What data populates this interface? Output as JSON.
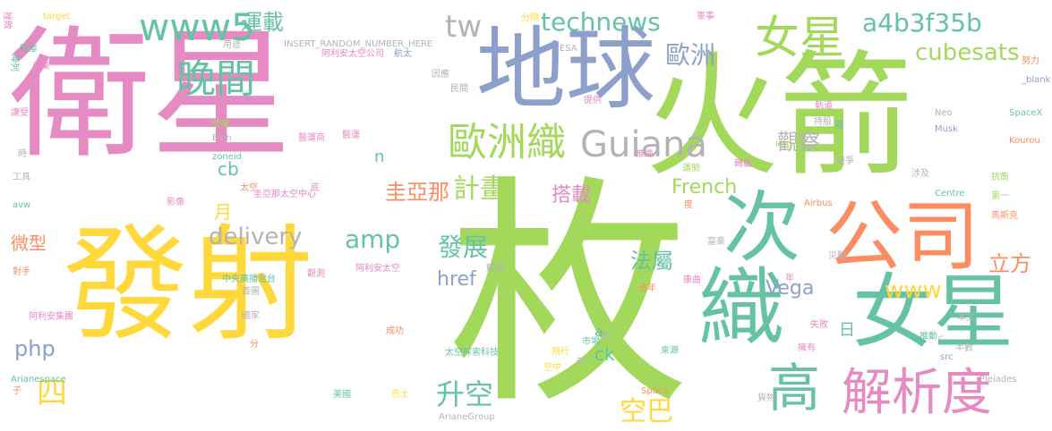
{
  "words": [
    {
      "text": "枚",
      "color": "#a3d95b"
    },
    {
      "text": "衛星",
      "color": "#e68ac3"
    },
    {
      "text": "發射",
      "color": "#ffd93b"
    },
    {
      "text": "火箭",
      "color": "#a3d95b"
    },
    {
      "text": "地球",
      "color": "#8da0cb"
    },
    {
      "text": "公司",
      "color": "#fc8d62"
    },
    {
      "text": "次",
      "color": "#66c2a5"
    },
    {
      "text": "織",
      "color": "#66c2a5"
    },
    {
      "text": "女星",
      "color": "#66c2a5"
    },
    {
      "text": "女星",
      "color": "#a3d95b"
    },
    {
      "text": "高",
      "color": "#66c2a5"
    },
    {
      "text": "解析度",
      "color": "#e68ac3"
    },
    {
      "text": "Guiana",
      "color": "#b3b3b3"
    },
    {
      "text": "歐洲織",
      "color": "#a3d95b"
    },
    {
      "text": "www5",
      "color": "#66c2a5"
    },
    {
      "text": "晚間",
      "color": "#66c2a5"
    },
    {
      "text": "technews",
      "color": "#66c2a5"
    },
    {
      "text": "tw",
      "color": "#b3b3b3"
    },
    {
      "text": "運載",
      "color": "#66c2a5"
    },
    {
      "text": "歐洲",
      "color": "#8da0cb"
    },
    {
      "text": "a4b3f35b",
      "color": "#66c2a5"
    },
    {
      "text": "cubesats",
      "color": "#a3d95b"
    },
    {
      "text": "delivery",
      "color": "#b3b3b3"
    },
    {
      "text": "amp",
      "color": "#66c2a5"
    },
    {
      "text": "計畫",
      "color": "#a3d95b"
    },
    {
      "text": "圭亞那",
      "color": "#fc8d62"
    },
    {
      "text": "觀察",
      "color": "#b3b3b3"
    },
    {
      "text": "發展",
      "color": "#66c2a5"
    },
    {
      "text": "href",
      "color": "#8da0cb"
    },
    {
      "text": "升空",
      "color": "#66c2a5"
    },
    {
      "text": "空巴",
      "color": "#ffd93b"
    },
    {
      "text": "搭載",
      "color": "#e68ac3"
    },
    {
      "text": "French",
      "color": "#a3d95b"
    },
    {
      "text": "法屬",
      "color": "#66c2a5"
    },
    {
      "text": "Vega",
      "color": "#8da0cb"
    },
    {
      "text": "www",
      "color": "#ffd93b"
    },
    {
      "text": "立方",
      "color": "#fc8d62"
    },
    {
      "text": "php",
      "color": "#8da0cb"
    },
    {
      "text": "四",
      "color": "#ffd93b"
    },
    {
      "text": "cb",
      "color": "#66c2a5"
    },
    {
      "text": "月",
      "color": "#ffd93b"
    },
    {
      "text": "微型",
      "color": "#fc8d62"
    },
    {
      "text": "n",
      "color": "#66c2a5"
    },
    {
      "text": "a",
      "color": "#66c2a5"
    },
    {
      "text": "ck",
      "color": "#66c2a5"
    },
    {
      "text": "日",
      "color": "#66c2a5"
    },
    {
      "text": "INSERT_RANDOM_NUMBER_HERE",
      "color": "#b3b3b3"
    },
    {
      "text": "target",
      "color": "#ffd93b"
    },
    {
      "text": "陸軍",
      "color": "#66c2a5"
    },
    {
      "text": "陣列",
      "color": "#66c2a5"
    },
    {
      "text": "挫敗",
      "color": "#e68ac3"
    },
    {
      "text": "商業",
      "color": "#e68ac3"
    },
    {
      "text": "讓受",
      "color": "#e68ac3"
    },
    {
      "text": "時",
      "color": "#b3b3b3"
    },
    {
      "text": "工具",
      "color": "#b3b3b3"
    },
    {
      "text": "avw",
      "color": "#66c2a5"
    },
    {
      "text": "對手",
      "color": "#fc8d62"
    },
    {
      "text": "阿利安集團",
      "color": "#e68ac3"
    },
    {
      "text": "Arianespace",
      "color": "#66c2a5"
    },
    {
      "text": "子",
      "color": "#fc8d62"
    },
    {
      "text": "用途",
      "color": "#b3b3b3"
    },
    {
      "text": "阿利安太空公司",
      "color": "#e68ac3"
    },
    {
      "text": "授權",
      "color": "#a3d95b"
    },
    {
      "text": "Elon",
      "color": "#b3b3b3"
    },
    {
      "text": "zoneid",
      "color": "#66c2a5"
    },
    {
      "text": "醫運商",
      "color": "#e68ac3"
    },
    {
      "text": "醫運",
      "color": "#e68ac3"
    },
    {
      "text": "太空",
      "color": "#fc8d62"
    },
    {
      "text": "圭亞那太空中心",
      "color": "#e68ac3"
    },
    {
      "text": "底",
      "color": "#e68ac3"
    },
    {
      "text": "影像",
      "color": "#e68ac3"
    },
    {
      "text": "中央廣播電台",
      "color": "#66c2a5"
    },
    {
      "text": "首圖",
      "color": "#b3b3b3"
    },
    {
      "text": "觀測",
      "color": "#e68ac3"
    },
    {
      "text": "阿利安太空",
      "color": "#e68ac3"
    },
    {
      "text": "國家",
      "color": "#b3b3b3"
    },
    {
      "text": "分",
      "color": "#fc8d62"
    },
    {
      "text": "成功",
      "color": "#fc8d62"
    },
    {
      "text": "太空探索科技",
      "color": "#66c2a5"
    },
    {
      "text": "美國",
      "color": "#66c2a5"
    },
    {
      "text": "巴士",
      "color": "#ffd93b"
    },
    {
      "text": "ArianeGroup",
      "color": "#b3b3b3"
    },
    {
      "text": "航太",
      "color": "#8da0cb"
    },
    {
      "text": "因應",
      "color": "#b3b3b3"
    },
    {
      "text": "民間",
      "color": "#b3b3b3"
    },
    {
      "text": "ESA",
      "color": "#b3b3b3"
    },
    {
      "text": "提供",
      "color": "#e68ac3"
    },
    {
      "text": "分隔",
      "color": "#ffd93b"
    },
    {
      "text": "軍事",
      "color": "#e68ac3"
    },
    {
      "text": "努力",
      "color": "#fc8d62"
    },
    {
      "text": "_blank",
      "color": "#8da0cb"
    },
    {
      "text": "軌道",
      "color": "#e68ac3"
    },
    {
      "text": "兩",
      "color": "#66c2a5"
    },
    {
      "text": "持股",
      "color": "#b3b3b3"
    },
    {
      "text": "Neo",
      "color": "#b3b3b3"
    },
    {
      "text": "SpaceX",
      "color": "#66c2a5"
    },
    {
      "text": "Musk",
      "color": "#8da0cb"
    },
    {
      "text": "Kourou",
      "color": "#fc8d62"
    },
    {
      "text": "img",
      "color": "#a3d95b"
    },
    {
      "text": "推進",
      "color": "#e68ac3"
    },
    {
      "text": "運勢",
      "color": "#a3d95b"
    },
    {
      "text": "轉載",
      "color": "#e68ac3"
    },
    {
      "text": "競爭",
      "color": "#b3b3b3"
    },
    {
      "text": "涉及",
      "color": "#b3b3b3"
    },
    {
      "text": "抗衡",
      "color": "#a3d95b"
    },
    {
      "text": "第一",
      "color": "#a3d95b"
    },
    {
      "text": "Centre",
      "color": "#66c2a5"
    },
    {
      "text": "Airbus",
      "color": "#fc8d62"
    },
    {
      "text": "富豪",
      "color": "#b3b3b3"
    },
    {
      "text": "馬斯克",
      "color": "#fc8d62"
    },
    {
      "text": "災難",
      "color": "#b3b3b3"
    },
    {
      "text": "解體",
      "color": "#b3b3b3"
    },
    {
      "text": "康曲",
      "color": "#e68ac3"
    },
    {
      "text": "去年",
      "color": "#fc8d62"
    },
    {
      "text": "年",
      "color": "#e68ac3"
    },
    {
      "text": "失敗",
      "color": "#e68ac3"
    },
    {
      "text": "本文",
      "color": "#b3b3b3"
    },
    {
      "text": "擁有",
      "color": "#e68ac3"
    },
    {
      "text": "半數",
      "color": "#b3b3b3"
    },
    {
      "text": "推動",
      "color": "#66c2a5"
    },
    {
      "text": "src",
      "color": "#8da0cb"
    },
    {
      "text": "市場",
      "color": "#66c2a5"
    },
    {
      "text": "飛行",
      "color": "#ffd93b"
    },
    {
      "text": "來源",
      "color": "#66c2a5"
    },
    {
      "text": "空中",
      "color": "#ffd93b"
    },
    {
      "text": "新",
      "color": "#b3b3b3"
    },
    {
      "text": "Space",
      "color": "#fc8d62"
    },
    {
      "text": "貨物",
      "color": "#b3b3b3"
    },
    {
      "text": "Pleiades",
      "color": "#b3b3b3"
    },
    {
      "text": "c",
      "color": "#b3b3b3"
    },
    {
      "text": "數",
      "color": "#b3b3b3"
    },
    {
      "text": "度",
      "color": "#fc8d62"
    }
  ]
}
